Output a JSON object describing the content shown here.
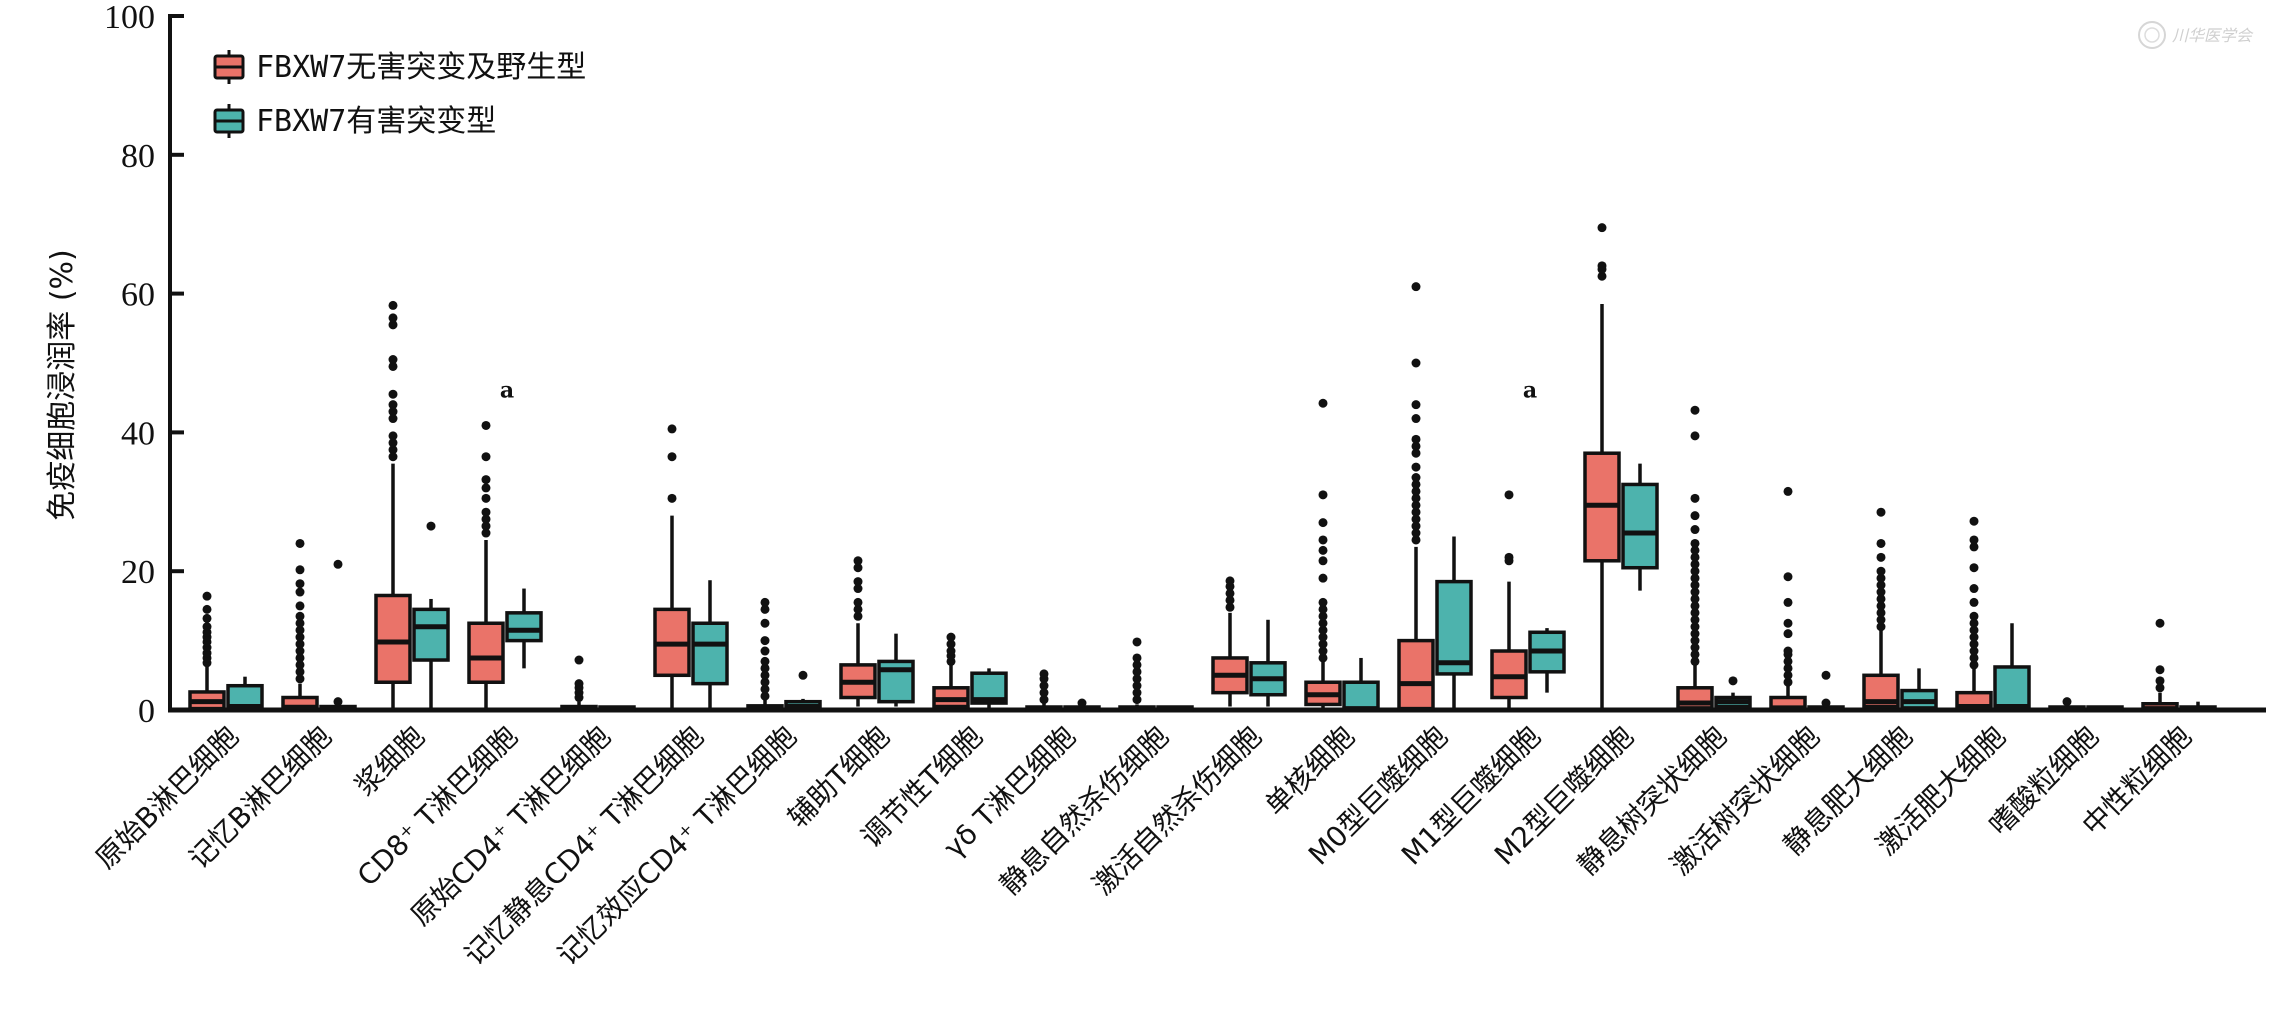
{
  "chart_data": {
    "type": "box",
    "title": "",
    "xlabel": "",
    "ylabel": "免疫细胞浸润率 (%)",
    "ylim": [
      0,
      100
    ],
    "yticks": [
      "0",
      "20",
      "40",
      "60",
      "80",
      "100"
    ],
    "yticks_values": [
      0,
      20,
      40,
      60,
      80,
      100
    ],
    "grid": false,
    "legend_position": "top-left",
    "categories": [
      "原始B淋巴细胞",
      "记忆B淋巴细胞",
      "浆细胞",
      "CD8⁺ T淋巴细胞",
      "原始CD4⁺ T淋巴细胞",
      "记忆静息CD4⁺ T淋巴细胞",
      "记忆效应CD4⁺ T淋巴细胞",
      "辅助T细胞",
      "调节性T细胞",
      "γδ T淋巴细胞",
      "静息自然杀伤细胞",
      "激活自然杀伤细胞",
      "单核细胞",
      "M0型巨噬细胞",
      "M1型巨噬细胞",
      "M2型巨噬细胞",
      "静息树突状细胞",
      "激活树突状细胞",
      "静息肥大细胞",
      "激活肥大细胞",
      "嗜酸粒细胞",
      "中性粒细胞"
    ],
    "series": [
      {
        "name": "FBXW7无害突变及野生型",
        "color": "#ea7369",
        "boxes": [
          {
            "whislo": 0,
            "q1": 0.2,
            "med": 1.2,
            "q3": 2.6,
            "whishi": 6.2,
            "fliers": [
              6.8,
              7.5,
              8.2,
              9.0,
              9.8,
              10.5,
              11.2,
              12.0,
              13.2,
              14.5,
              16.4
            ]
          },
          {
            "whislo": 0,
            "q1": 0,
            "med": 0.4,
            "q3": 1.8,
            "whishi": 3.8,
            "fliers": [
              4.5,
              5.5,
              6.5,
              7.5,
              8.5,
              9.5,
              10.5,
              11.5,
              12.5,
              13.5,
              15,
              17,
              18.2,
              20.2,
              24
            ]
          },
          {
            "whislo": 0,
            "q1": 4.0,
            "med": 9.8,
            "q3": 16.5,
            "whishi": 35.5,
            "fliers": [
              36.5,
              37.5,
              38.5,
              39.5,
              42,
              43,
              44,
              45.5,
              49.5,
              50.5,
              55.5,
              56.5,
              58.3
            ]
          },
          {
            "whislo": 0,
            "q1": 4.0,
            "med": 7.5,
            "q3": 12.5,
            "whishi": 24.5,
            "fliers": [
              25.5,
              26.5,
              27.5,
              28.5,
              30.5,
              32.0,
              33.2,
              36.5,
              41.0
            ]
          },
          {
            "whislo": 0,
            "q1": 0,
            "med": 0,
            "q3": 0.5,
            "whishi": 1.2,
            "fliers": [
              1.8,
              2.5,
              3.2,
              3.8,
              7.2
            ]
          },
          {
            "whislo": 0,
            "q1": 5.0,
            "med": 9.5,
            "q3": 14.5,
            "whishi": 28.0,
            "fliers": [
              30.5,
              36.5,
              40.5
            ]
          },
          {
            "whislo": 0,
            "q1": 0,
            "med": 0,
            "q3": 0.6,
            "whishi": 1.5,
            "fliers": [
              2,
              3,
              4,
              5,
              6,
              7,
              8.5,
              10,
              12.5,
              14.5,
              15.5
            ]
          },
          {
            "whislo": 0.5,
            "q1": 1.8,
            "med": 4.0,
            "q3": 6.5,
            "whishi": 12.5,
            "fliers": [
              13.5,
              14.5,
              15.5,
              17.5,
              18.5,
              20.5,
              21.5
            ]
          },
          {
            "whislo": 0,
            "q1": 0.5,
            "med": 1.5,
            "q3": 3.2,
            "whishi": 6.5,
            "fliers": [
              7,
              7.8,
              8.5,
              9.5,
              10.5
            ]
          },
          {
            "whislo": 0,
            "q1": 0,
            "med": 0,
            "q3": 0.4,
            "whishi": 1.0,
            "fliers": [
              1.5,
              2.5,
              3.5,
              4.5,
              5.2
            ]
          },
          {
            "whislo": 0,
            "q1": 0,
            "med": 0,
            "q3": 0.3,
            "whishi": 0.8,
            "fliers": [
              1.5,
              2.5,
              3.5,
              4.5,
              5.5,
              6.5,
              7.5,
              9.8
            ]
          },
          {
            "whislo": 0.5,
            "q1": 2.5,
            "med": 5.0,
            "q3": 7.5,
            "whishi": 14.0,
            "fliers": [
              14.8,
              15.8,
              16.8,
              17.8,
              18.6
            ]
          },
          {
            "whislo": 0,
            "q1": 0.8,
            "med": 2.2,
            "q3": 4.0,
            "whishi": 7.0,
            "fliers": [
              7.5,
              8.5,
              9.5,
              10.5,
              11.5,
              12.5,
              13.5,
              14.5,
              15.5,
              19,
              21.5,
              23,
              24.5,
              27,
              31,
              44.2
            ]
          },
          {
            "whislo": 0,
            "q1": 0.2,
            "med": 3.8,
            "q3": 10.0,
            "whishi": 23.5,
            "fliers": [
              24.5,
              25.5,
              26.5,
              27.5,
              28.5,
              29.5,
              30.5,
              31.5,
              32.5,
              33.5,
              35,
              37,
              38,
              39,
              42,
              44,
              50,
              61
            ]
          },
          {
            "whislo": 0,
            "q1": 1.8,
            "med": 4.8,
            "q3": 8.5,
            "whishi": 18.5,
            "fliers": [
              21.5,
              22.0,
              31.0
            ]
          },
          {
            "whislo": 0,
            "q1": 21.5,
            "med": 29.5,
            "q3": 37.0,
            "whishi": 58.5,
            "fliers": [
              62.5,
              63.5,
              64.0,
              69.5
            ]
          },
          {
            "whislo": 0,
            "q1": 0.3,
            "med": 1.0,
            "q3": 3.2,
            "whishi": 6.5,
            "fliers": [
              7,
              8,
              9,
              10,
              11,
              12,
              13,
              14,
              15,
              16,
              17,
              18,
              19,
              20,
              21,
              22,
              23,
              24,
              26,
              28,
              30.5,
              39.5,
              43.2
            ]
          },
          {
            "whislo": 0,
            "q1": 0,
            "med": 0.3,
            "q3": 1.8,
            "whishi": 3.5,
            "fliers": [
              4,
              5,
              6,
              7,
              8,
              8.5,
              11,
              12.5,
              15.5,
              19.2,
              31.5
            ]
          },
          {
            "whislo": 0,
            "q1": 0.5,
            "med": 1.2,
            "q3": 5.0,
            "whishi": 11.5,
            "fliers": [
              12,
              13,
              14,
              15,
              16,
              17,
              18,
              19,
              20,
              22,
              24,
              28.5
            ]
          },
          {
            "whislo": 0,
            "q1": 0.3,
            "med": 0.5,
            "q3": 2.5,
            "whishi": 6.0,
            "fliers": [
              6.5,
              7.5,
              8.5,
              9.5,
              10.5,
              11.5,
              12.5,
              13.5,
              15.5,
              17.5,
              20.5,
              23.5,
              24.5,
              27.2
            ]
          },
          {
            "whislo": 0,
            "q1": 0,
            "med": 0,
            "q3": 0.3,
            "whishi": 0.8,
            "fliers": [
              1.2
            ]
          },
          {
            "whislo": 0,
            "q1": 0,
            "med": 0.2,
            "q3": 0.9,
            "whishi": 2.5,
            "fliers": [
              3.2,
              4.2,
              5.8,
              12.5
            ]
          }
        ]
      },
      {
        "name": "FBXW7有害突变型",
        "color": "#4db3ad",
        "boxes": [
          {
            "whislo": 0,
            "q1": 0.2,
            "med": 0.5,
            "q3": 3.5,
            "whishi": 4.8,
            "fliers": []
          },
          {
            "whislo": 0,
            "q1": 0,
            "med": 0,
            "q3": 0.5,
            "whishi": 0.8,
            "fliers": [
              1.2,
              21.0
            ]
          },
          {
            "whislo": 0,
            "q1": 7.2,
            "med": 12.0,
            "q3": 14.5,
            "whishi": 16.0,
            "fliers": [
              26.5
            ]
          },
          {
            "whislo": 6.0,
            "q1": 10.0,
            "med": 11.5,
            "q3": 14.0,
            "whishi": 17.5,
            "fliers": []
          },
          {
            "whislo": 0,
            "q1": 0,
            "med": 0,
            "q3": 0.3,
            "whishi": 0.3,
            "fliers": []
          },
          {
            "whislo": 0,
            "q1": 3.8,
            "med": 9.5,
            "q3": 12.5,
            "whishi": 18.7,
            "fliers": []
          },
          {
            "whislo": 0,
            "q1": 0,
            "med": 0.5,
            "q3": 1.2,
            "whishi": 1.6,
            "fliers": [
              5.0
            ]
          },
          {
            "whislo": 0.5,
            "q1": 1.2,
            "med": 5.8,
            "q3": 7.0,
            "whishi": 11.0,
            "fliers": []
          },
          {
            "whislo": 0.2,
            "q1": 1.0,
            "med": 1.5,
            "q3": 5.3,
            "whishi": 6.0,
            "fliers": []
          },
          {
            "whislo": 0,
            "q1": 0,
            "med": 0,
            "q3": 0.3,
            "whishi": 0.3,
            "fliers": [
              1.0
            ]
          },
          {
            "whislo": 0,
            "q1": 0,
            "med": 0,
            "q3": 0.3,
            "whishi": 0.3,
            "fliers": []
          },
          {
            "whislo": 0.5,
            "q1": 2.2,
            "med": 4.5,
            "q3": 6.8,
            "whishi": 13.0,
            "fliers": []
          },
          {
            "whislo": 0,
            "q1": 0,
            "med": 0.2,
            "q3": 4.0,
            "whishi": 7.5,
            "fliers": []
          },
          {
            "whislo": 0,
            "q1": 5.2,
            "med": 6.8,
            "q3": 18.5,
            "whishi": 25.0,
            "fliers": []
          },
          {
            "whislo": 2.5,
            "q1": 5.5,
            "med": 8.5,
            "q3": 11.2,
            "whishi": 11.8,
            "fliers": []
          },
          {
            "whislo": 17.2,
            "q1": 20.5,
            "med": 25.5,
            "q3": 32.5,
            "whishi": 35.5,
            "fliers": []
          },
          {
            "whislo": 0,
            "q1": 0.5,
            "med": 1.2,
            "q3": 1.8,
            "whishi": 2.5,
            "fliers": [
              4.2
            ]
          },
          {
            "whislo": 0,
            "q1": 0,
            "med": 0,
            "q3": 0.3,
            "whishi": 0.5,
            "fliers": [
              1.0,
              5.0
            ]
          },
          {
            "whislo": 0,
            "q1": 0.3,
            "med": 1.2,
            "q3": 2.8,
            "whishi": 6.0,
            "fliers": []
          },
          {
            "whislo": 0,
            "q1": 0.5,
            "med": 0.5,
            "q3": 6.2,
            "whishi": 12.5,
            "fliers": []
          },
          {
            "whislo": 0,
            "q1": 0,
            "med": 0,
            "q3": 0.3,
            "whishi": 0.3,
            "fliers": []
          },
          {
            "whislo": 0,
            "q1": 0,
            "med": 0,
            "q3": 0.3,
            "whishi": 1.2,
            "fliers": []
          }
        ]
      }
    ],
    "annotations": [
      {
        "text": "a",
        "category": "CD8⁺ T淋巴细胞",
        "y": 45
      },
      {
        "text": "a",
        "category": "M1型巨噬细胞",
        "y": 45
      }
    ]
  },
  "watermark": {
    "text": "川华医学会"
  }
}
